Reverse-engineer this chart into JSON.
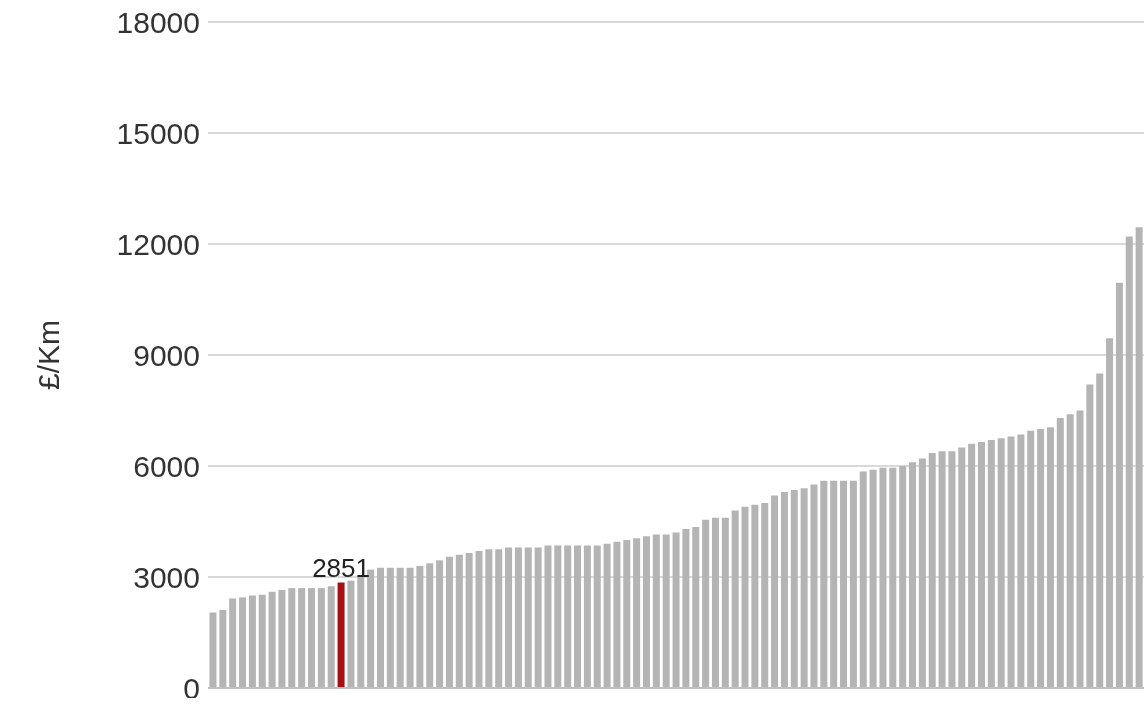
{
  "chart_data": {
    "type": "bar",
    "ylabel": "£/Km",
    "categories": [
      null,
      null,
      null,
      null,
      null,
      null,
      null,
      null,
      null,
      null,
      null,
      null,
      null,
      null,
      null,
      null,
      null,
      null,
      null,
      null,
      null,
      null,
      null,
      null,
      null,
      null,
      null,
      null,
      null,
      null,
      null,
      null,
      null,
      null,
      null,
      null,
      null,
      null,
      null,
      null,
      null,
      null,
      null,
      null,
      null,
      null,
      null,
      null,
      null,
      null,
      null,
      null,
      null,
      null,
      null,
      null,
      null,
      null,
      null,
      null,
      null,
      null,
      null,
      null,
      null,
      null,
      null,
      null,
      null,
      null,
      null,
      null,
      null,
      null,
      null,
      null,
      null,
      null,
      null,
      null,
      null,
      null,
      null,
      null,
      null,
      null,
      null,
      null,
      null,
      null,
      null,
      null,
      null,
      null,
      null
    ],
    "values": [
      2040,
      2110,
      2420,
      2450,
      2500,
      2520,
      2600,
      2650,
      2700,
      2700,
      2700,
      2700,
      2750,
      2851,
      2900,
      3050,
      3200,
      3250,
      3250,
      3250,
      3250,
      3300,
      3370,
      3450,
      3550,
      3600,
      3650,
      3700,
      3750,
      3750,
      3800,
      3800,
      3800,
      3800,
      3850,
      3850,
      3850,
      3850,
      3850,
      3850,
      3900,
      3950,
      4000,
      4050,
      4100,
      4150,
      4150,
      4200,
      4300,
      4350,
      4550,
      4600,
      4600,
      4800,
      4900,
      4950,
      5000,
      5200,
      5300,
      5350,
      5400,
      5500,
      5600,
      5600,
      5600,
      5600,
      5850,
      5900,
      5950,
      5950,
      6000,
      6100,
      6200,
      6350,
      6400,
      6400,
      6500,
      6600,
      6650,
      6700,
      6750,
      6800,
      6850,
      6950,
      7000,
      7050,
      7300,
      7400,
      7500,
      8200,
      8500,
      9450,
      10950,
      12200,
      12450
    ],
    "colors": [
      "#b4b4b4",
      "#b4b4b4",
      "#b4b4b4",
      "#b4b4b4",
      "#b4b4b4",
      "#b4b4b4",
      "#b4b4b4",
      "#b4b4b4",
      "#b4b4b4",
      "#b4b4b4",
      "#b4b4b4",
      "#b4b4b4",
      "#b4b4b4",
      "#a50f15",
      "#b4b4b4",
      "#b4b4b4",
      "#b4b4b4",
      "#b4b4b4",
      "#b4b4b4",
      "#b4b4b4",
      "#b4b4b4",
      "#b4b4b4",
      "#b4b4b4",
      "#b4b4b4",
      "#b4b4b4",
      "#b4b4b4",
      "#b4b4b4",
      "#b4b4b4",
      "#b4b4b4",
      "#b4b4b4",
      "#b4b4b4",
      "#b4b4b4",
      "#b4b4b4",
      "#b4b4b4",
      "#b4b4b4",
      "#b4b4b4",
      "#b4b4b4",
      "#b4b4b4",
      "#b4b4b4",
      "#b4b4b4",
      "#b4b4b4",
      "#b4b4b4",
      "#b4b4b4",
      "#b4b4b4",
      "#b4b4b4",
      "#b4b4b4",
      "#b4b4b4",
      "#b4b4b4",
      "#b4b4b4",
      "#b4b4b4",
      "#b4b4b4",
      "#b4b4b4",
      "#b4b4b4",
      "#b4b4b4",
      "#b4b4b4",
      "#b4b4b4",
      "#b4b4b4",
      "#b4b4b4",
      "#b4b4b4",
      "#b4b4b4",
      "#b4b4b4",
      "#b4b4b4",
      "#b4b4b4",
      "#b4b4b4",
      "#b4b4b4",
      "#b4b4b4",
      "#b4b4b4",
      "#b4b4b4",
      "#b4b4b4",
      "#b4b4b4",
      "#b4b4b4",
      "#b4b4b4",
      "#b4b4b4",
      "#b4b4b4",
      "#b4b4b4",
      "#b4b4b4",
      "#b4b4b4",
      "#b4b4b4",
      "#b4b4b4",
      "#b4b4b4",
      "#b4b4b4",
      "#b4b4b4",
      "#b4b4b4",
      "#b4b4b4",
      "#b4b4b4",
      "#b4b4b4",
      "#b4b4b4",
      "#b4b4b4",
      "#b4b4b4",
      "#b4b4b4",
      "#b4b4b4",
      "#b4b4b4",
      "#b4b4b4",
      "#b4b4b4",
      "#b4b4b4"
    ],
    "value_labels": [
      null,
      null,
      null,
      null,
      null,
      null,
      null,
      null,
      null,
      null,
      null,
      null,
      null,
      "2851",
      null,
      null,
      null,
      null,
      null,
      null,
      null,
      null,
      null,
      null,
      null,
      null,
      null,
      null,
      null,
      null,
      null,
      null,
      null,
      null,
      null,
      null,
      null,
      null,
      null,
      null,
      null,
      null,
      null,
      null,
      null,
      null,
      null,
      null,
      null,
      null,
      null,
      null,
      null,
      null,
      null,
      null,
      null,
      null,
      null,
      null,
      null,
      null,
      null,
      null,
      null,
      null,
      null,
      null,
      null,
      null,
      null,
      null,
      null,
      null,
      null,
      null,
      null,
      null,
      null,
      null,
      null,
      null,
      null,
      null,
      null,
      null,
      null,
      null,
      null,
      null,
      null,
      null,
      null,
      null,
      null
    ],
    "ylim": [
      0,
      18000
    ],
    "yticks": [
      0,
      3000,
      6000,
      9000,
      12000,
      15000,
      18000
    ],
    "grid": "y",
    "tick_labels": "y"
  }
}
